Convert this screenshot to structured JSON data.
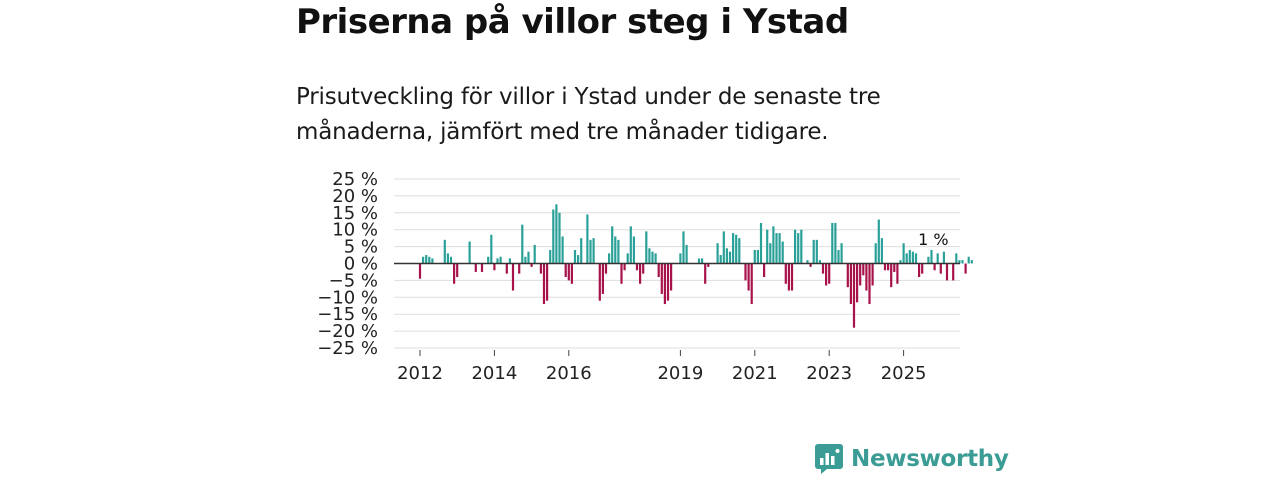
{
  "header": {
    "title": "Priserna på villor steg i Ystad",
    "subtitle": "Prisutveckling för villor i Ystad under de senaste tre månaderna, jämfört med tre månader tidigare."
  },
  "brand": {
    "name": "Newsworthy"
  },
  "colors": {
    "positive": "#2aa198",
    "negative": "#a8124a",
    "grid": "#dddddd",
    "zero": "#333333",
    "brand": "#3a9c94"
  },
  "chart_data": {
    "type": "bar",
    "title": "Priserna på villor steg i Ystad",
    "xlabel": "",
    "ylabel": "",
    "ylim": [
      -25,
      25
    ],
    "yticks": [
      25,
      20,
      15,
      10,
      5,
      0,
      -5,
      -10,
      -15,
      -20,
      -25
    ],
    "ytick_labels": [
      "25 %",
      "20 %",
      "15 %",
      "10 %",
      "5 %",
      "0 %",
      "−5 %",
      "−10 %",
      "−15 %",
      "−20 %",
      "−25 %"
    ],
    "xtick_labels": [
      "2012",
      "2014",
      "2016",
      "2019",
      "2021",
      "2023",
      "2025"
    ],
    "xtick_months": [
      0,
      24,
      48,
      84,
      108,
      132,
      156
    ],
    "start": "2012-01",
    "annotation": {
      "label": "1 %",
      "month_index": 164,
      "value": 1
    },
    "values": [
      -4.5,
      2,
      2.5,
      2,
      1.5,
      0,
      0,
      0,
      7,
      3,
      2,
      -6,
      -4,
      0,
      0,
      0,
      6.5,
      0,
      -2.5,
      0,
      -2.5,
      0,
      2,
      8.5,
      -2,
      1.5,
      2,
      0,
      -3,
      1.5,
      -8,
      0,
      -3,
      11.5,
      2,
      3.5,
      -1,
      5.5,
      0,
      -3,
      -12,
      -11,
      4,
      16,
      17.5,
      15,
      8,
      -4,
      -5,
      -6,
      4,
      2.5,
      7.5,
      0,
      14.5,
      7,
      7.5,
      0,
      -11,
      -9,
      -3,
      3,
      11,
      8,
      7,
      -6,
      -2,
      3,
      11,
      8,
      -2,
      -6,
      -3,
      9.5,
      4.5,
      3.5,
      3,
      -4,
      -9,
      -12,
      -11,
      -8,
      0,
      0,
      3,
      9.5,
      5.5,
      0,
      0,
      0,
      1.5,
      1.5,
      -6,
      -1,
      0,
      0,
      6,
      2.5,
      9.5,
      4.5,
      3.5,
      9,
      8.5,
      7.5,
      0,
      -5,
      -8,
      -12,
      4,
      4,
      12,
      -4,
      10,
      6,
      11,
      9,
      9,
      6.5,
      -6,
      -8,
      -8,
      10,
      9,
      10,
      0,
      1,
      -1,
      7,
      7,
      1,
      -3,
      -6.5,
      -6,
      12,
      12,
      4,
      6,
      0,
      -7,
      -12,
      -19,
      -11.5,
      -6.5,
      -3.5,
      -8,
      -12,
      -6.5,
      6,
      13,
      7.5,
      -2,
      -2,
      -7,
      -2.5,
      -6,
      1,
      6,
      3,
      4,
      3.5,
      3,
      -4,
      -3,
      0,
      2,
      4,
      -2,
      3,
      -3,
      3.5,
      -5,
      0,
      -5,
      3,
      1,
      1,
      -3,
      2,
      1
    ]
  }
}
